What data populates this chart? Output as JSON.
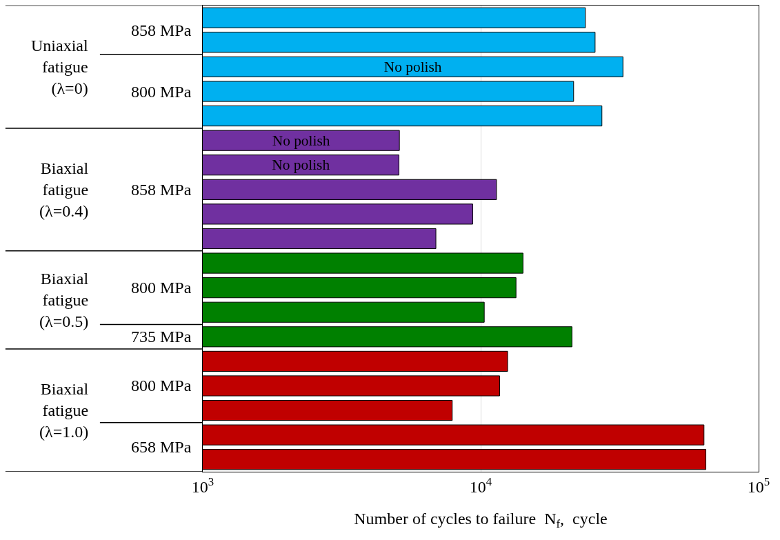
{
  "chart_data": {
    "type": "bar",
    "orientation": "horizontal",
    "log": "x",
    "xlabel": "Number of cycles to failure  N$_{f}$,  cycle",
    "categories": [
      null,
      null,
      null,
      null,
      null,
      null,
      null,
      null,
      null,
      null,
      null,
      null,
      null,
      null,
      null,
      null,
      null,
      null,
      null
    ],
    "values": [
      23800,
      25800,
      32500,
      21600,
      27300,
      5100,
      5080,
      11400,
      9360,
      6900,
      14200,
      13400,
      10300,
      21300,
      12500,
      11700,
      7900,
      63600,
      64600
    ],
    "colors": [
      "#00b0f0",
      "#00b0f0",
      "#00b0f0",
      "#00b0f0",
      "#00b0f0",
      "#7030a0",
      "#7030a0",
      "#7030a0",
      "#7030a0",
      "#7030a0",
      "#008000",
      "#008000",
      "#008000",
      "#008000",
      "#c00000",
      "#c00000",
      "#c00000",
      "#c00000",
      "#c00000"
    ],
    "value_labels": [
      null,
      null,
      "No polish",
      null,
      null,
      "No polish",
      "No polish",
      null,
      null,
      null,
      null,
      null,
      null,
      null,
      null,
      null,
      null,
      null,
      null
    ],
    "xlim": [
      1000,
      100000
    ],
    "xticks": [
      {
        "value": 1000,
        "label": "10$^{3}$"
      },
      {
        "value": 10000,
        "label": "10$^{4}$"
      },
      {
        "value": 100000,
        "label": "10$^{5}$"
      }
    ],
    "grid": "x",
    "annotations": [
      "Uniaxial fatigue (λ=0)",
      "858 MPa",
      "800 MPa",
      "Biaxial fatigue (λ=0.4)",
      "858 MPa",
      "Biaxial fatigue (λ=0.5)",
      "800 MPa",
      "735 MPa",
      "Biaxial fatigue (λ=1.0)",
      "800 MPa",
      "658 MPa"
    ]
  }
}
